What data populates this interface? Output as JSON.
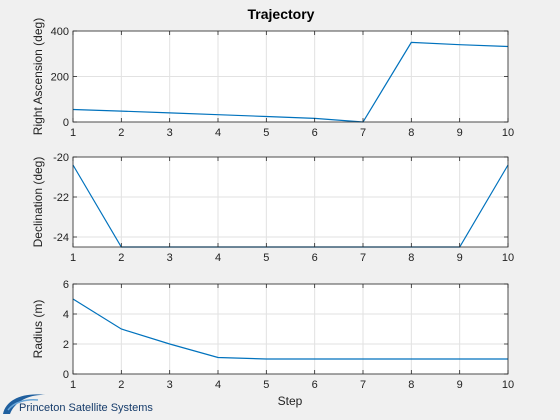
{
  "figure": {
    "title": "Trajectory",
    "xlabel": "Step",
    "logo_text": "Princeton Satellite Systems",
    "line_color": "#0072bd",
    "grid_color": "#e2e2e2"
  },
  "chart_data": [
    {
      "type": "line",
      "title": "Trajectory",
      "xlabel": "",
      "ylabel": "Right Ascension (deg)",
      "x": [
        1,
        2,
        3,
        4,
        5,
        6,
        7,
        8,
        9,
        10
      ],
      "xlim": [
        1,
        10
      ],
      "ylim": [
        0,
        400
      ],
      "xticks": [
        1,
        2,
        3,
        4,
        5,
        6,
        7,
        8,
        9,
        10
      ],
      "yticks": [
        0,
        200,
        400
      ],
      "grid": true,
      "series": [
        {
          "values": [
            55,
            48,
            40,
            32,
            24,
            16,
            0,
            350,
            340,
            332
          ]
        }
      ]
    },
    {
      "type": "line",
      "title": "",
      "xlabel": "",
      "ylabel": "Declination (deg)",
      "x": [
        1,
        2,
        3,
        4,
        5,
        6,
        7,
        8,
        9,
        10
      ],
      "xlim": [
        1,
        10
      ],
      "ylim": [
        -24.5,
        -20
      ],
      "xticks": [
        1,
        2,
        3,
        4,
        5,
        6,
        7,
        8,
        9,
        10
      ],
      "yticks": [
        -24,
        -22,
        -20
      ],
      "grid": true,
      "series": [
        {
          "values": [
            -20.4,
            -24.5,
            -24.5,
            -24.5,
            -24.5,
            -24.5,
            -24.5,
            -24.5,
            -24.5,
            -20.4
          ]
        }
      ]
    },
    {
      "type": "line",
      "title": "",
      "xlabel": "Step",
      "ylabel": "Radius (m)",
      "x": [
        1,
        2,
        3,
        4,
        5,
        6,
        7,
        8,
        9,
        10
      ],
      "xlim": [
        1,
        10
      ],
      "ylim": [
        0,
        6
      ],
      "xticks": [
        1,
        2,
        3,
        4,
        5,
        6,
        7,
        8,
        9,
        10
      ],
      "yticks": [
        0,
        2,
        4,
        6
      ],
      "grid": true,
      "series": [
        {
          "values": [
            5,
            3,
            2,
            1.1,
            1,
            1,
            1,
            1,
            1,
            1
          ]
        }
      ]
    }
  ]
}
